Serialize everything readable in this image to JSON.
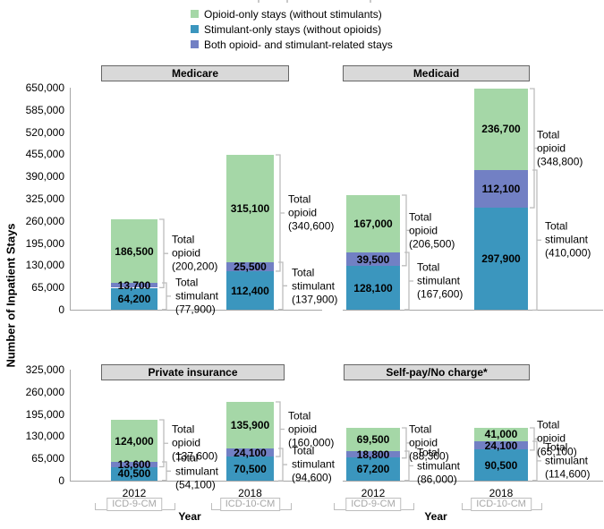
{
  "figure": {
    "y_axis_title": "Number of Inpatient Stays",
    "x_axis_title": "Year"
  },
  "legend": {
    "items": [
      {
        "label": "Opioid-only stays (without stimulants)",
        "color": "#a5d7a7",
        "series_key": "opioid_only"
      },
      {
        "label": "Stimulant-only stays (without opioids)",
        "color": "#3b96be",
        "series_key": "stimulant_only"
      },
      {
        "label": "Both opioid- and stimulant-related stays",
        "color": "#7280c4",
        "series_key": "both"
      }
    ]
  },
  "colors": {
    "opioid_only": "#a5d7a7",
    "stimulant_only": "#3b96be",
    "both": "#7280c4",
    "panel_title_bg": "#d9d9d9",
    "panel_title_border": "#666666",
    "axis_line": "#a6a6a6",
    "brace": "#bdbdbd",
    "icd_text": "#a6a6a6",
    "icd_border": "#bdbdbd"
  },
  "chart_data": {
    "type": "bar",
    "stacked": true,
    "stack_order_bottom_to_top": [
      "stimulant_only",
      "both",
      "opioid_only"
    ],
    "x_categories": [
      "2012",
      "2018"
    ],
    "x_sub_labels": [
      "ICD-9-CM",
      "ICD-10-CM"
    ],
    "panels": [
      {
        "title": "Medicare",
        "ylim": [
          0,
          650000
        ],
        "ytick_step": 65000,
        "bars": [
          {
            "year": "2012",
            "icd": "ICD-9-CM",
            "segments": {
              "stimulant_only": 64200,
              "both": 13700,
              "opioid_only": 186500
            },
            "segment_labels": {
              "stimulant_only": "64,200",
              "both": "13,700",
              "opioid_only": "186,500"
            },
            "total_opioid": {
              "label": "Total opioid",
              "value": 200200,
              "value_label": "(200,200)"
            },
            "total_stimulant": {
              "label": "Total stimulant",
              "value": 77900,
              "value_label": "(77,900)"
            }
          },
          {
            "year": "2018",
            "icd": "ICD-10-CM",
            "segments": {
              "stimulant_only": 112400,
              "both": 25500,
              "opioid_only": 315100
            },
            "segment_labels": {
              "stimulant_only": "112,400",
              "both": "25,500",
              "opioid_only": "315,100"
            },
            "total_opioid": {
              "label": "Total opioid",
              "value": 340600,
              "value_label": "(340,600)"
            },
            "total_stimulant": {
              "label": "Total stimulant",
              "value": 137900,
              "value_label": "(137,900)"
            }
          }
        ]
      },
      {
        "title": "Medicaid",
        "ylim": [
          0,
          650000
        ],
        "ytick_step": 65000,
        "bars": [
          {
            "year": "2012",
            "icd": "ICD-9-CM",
            "segments": {
              "stimulant_only": 128100,
              "both": 39500,
              "opioid_only": 167000
            },
            "segment_labels": {
              "stimulant_only": "128,100",
              "both": "39,500",
              "opioid_only": "167,000"
            },
            "total_opioid": {
              "label": "Total opioid",
              "value": 206500,
              "value_label": "(206,500)"
            },
            "total_stimulant": {
              "label": "Total stimulant",
              "value": 167600,
              "value_label": "(167,600)"
            }
          },
          {
            "year": "2018",
            "icd": "ICD-10-CM",
            "segments": {
              "stimulant_only": 297900,
              "both": 112100,
              "opioid_only": 236700
            },
            "segment_labels": {
              "stimulant_only": "297,900",
              "both": "112,100",
              "opioid_only": "236,700"
            },
            "total_opioid": {
              "label": "Total opioid",
              "value": 348800,
              "value_label": "(348,800)"
            },
            "total_stimulant": {
              "label": "Total stimulant",
              "value": 410000,
              "value_label": "(410,000)"
            }
          }
        ]
      },
      {
        "title": "Private insurance",
        "ylim": [
          0,
          325000
        ],
        "ytick_step": 65000,
        "bars": [
          {
            "year": "2012",
            "icd": "ICD-9-CM",
            "segments": {
              "stimulant_only": 40500,
              "both": 13600,
              "opioid_only": 124000
            },
            "segment_labels": {
              "stimulant_only": "40,500",
              "both": "13,600",
              "opioid_only": "124,000"
            },
            "total_opioid": {
              "label": "Total opioid",
              "value": 137600,
              "value_label": "(137,600)"
            },
            "total_stimulant": {
              "label": "Total stimulant",
              "value": 54100,
              "value_label": "(54,100)"
            }
          },
          {
            "year": "2018",
            "icd": "ICD-10-CM",
            "segments": {
              "stimulant_only": 70500,
              "both": 24100,
              "opioid_only": 135900
            },
            "segment_labels": {
              "stimulant_only": "70,500",
              "both": "24,100",
              "opioid_only": "135,900"
            },
            "total_opioid": {
              "label": "Total opioid",
              "value": 160000,
              "value_label": "(160,000)"
            },
            "total_stimulant": {
              "label": "Total stimulant",
              "value": 94600,
              "value_label": "(94,600)"
            }
          }
        ]
      },
      {
        "title": "Self-pay/No charge*",
        "ylim": [
          0,
          325000
        ],
        "ytick_step": 65000,
        "bars": [
          {
            "year": "2012",
            "icd": "ICD-9-CM",
            "segments": {
              "stimulant_only": 67200,
              "both": 18800,
              "opioid_only": 69500
            },
            "segment_labels": {
              "stimulant_only": "67,200",
              "both": "18,800",
              "opioid_only": "69,500"
            },
            "total_opioid": {
              "label": "Total opioid",
              "value": 88300,
              "value_label": "(88,300)"
            },
            "total_stimulant": {
              "label": "Total stimulant",
              "value": 86000,
              "value_label": "(86,000)"
            }
          },
          {
            "year": "2018",
            "icd": "ICD-10-CM",
            "segments": {
              "stimulant_only": 90500,
              "both": 24100,
              "opioid_only": 41000
            },
            "segment_labels": {
              "stimulant_only": "90,500",
              "both": "24,100",
              "opioid_only": "41,000"
            },
            "total_opioid": {
              "label": "Total opioid",
              "value": 65100,
              "value_label": "(65,100)"
            },
            "total_stimulant": {
              "label": "Total stimulant",
              "value": 114600,
              "value_label": "(114,600)"
            }
          }
        ]
      }
    ]
  }
}
